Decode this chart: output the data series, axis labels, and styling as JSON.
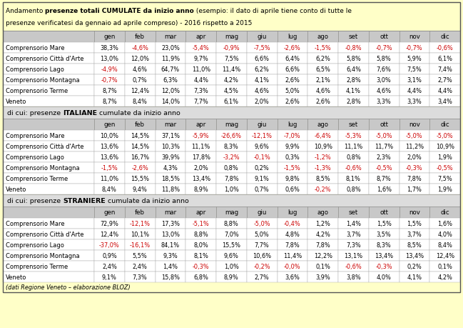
{
  "bg_color": "#FFFFC8",
  "header_bg": "#C8C8C8",
  "section_bg": "#DCDCDC",
  "months": [
    "gen",
    "feb",
    "mar",
    "apr",
    "mag",
    "giu",
    "lug",
    "ago",
    "set",
    "ott",
    "nov",
    "dic"
  ],
  "rows_totale": [
    [
      "Comprensorio Mare",
      "38,3%",
      "-4,6%",
      "23,0%",
      "-5,4%",
      "-0,9%",
      "-7,5%",
      "-2,6%",
      "-1,5%",
      "-0,8%",
      "-0,7%",
      "-0,7%",
      "-0,6%"
    ],
    [
      "Comprensorio Città d'Arte",
      "13,0%",
      "12,0%",
      "11,9%",
      "9,7%",
      "7,5%",
      "6,6%",
      "6,4%",
      "6,2%",
      "5,8%",
      "5,8%",
      "5,9%",
      "6,1%"
    ],
    [
      "Comprensorio Lago",
      "-4,9%",
      "4,6%",
      "64,7%",
      "11,0%",
      "11,4%",
      "6,2%",
      "6,6%",
      "6,5%",
      "6,4%",
      "7,6%",
      "7,5%",
      "7,4%"
    ],
    [
      "Comprensorio Montagna",
      "-0,7%",
      "0,7%",
      "6,3%",
      "4,4%",
      "4,2%",
      "4,1%",
      "2,6%",
      "2,1%",
      "2,8%",
      "3,0%",
      "3,1%",
      "2,7%"
    ],
    [
      "Comprensorio Terme",
      "8,7%",
      "12,4%",
      "12,0%",
      "7,3%",
      "4,5%",
      "4,6%",
      "5,0%",
      "4,6%",
      "4,1%",
      "4,6%",
      "4,4%",
      "4,4%"
    ],
    [
      "Veneto",
      "8,7%",
      "8,4%",
      "14,0%",
      "7,7%",
      "6,1%",
      "2,0%",
      "2,6%",
      "2,6%",
      "2,8%",
      "3,3%",
      "3,3%",
      "3,4%"
    ]
  ],
  "rows_italiane": [
    [
      "Comprensorio Mare",
      "10,0%",
      "14,5%",
      "37,1%",
      "-5,9%",
      "-26,6%",
      "-12,1%",
      "-7,0%",
      "-6,4%",
      "-5,3%",
      "-5,0%",
      "-5,0%",
      "-5,0%"
    ],
    [
      "Comprensorio Città d'Arte",
      "13,6%",
      "14,5%",
      "10,3%",
      "11,1%",
      "8,3%",
      "9,6%",
      "9,9%",
      "10,9%",
      "11,1%",
      "11,7%",
      "11,2%",
      "10,9%"
    ],
    [
      "Comprensorio Lago",
      "13,6%",
      "16,7%",
      "39,9%",
      "17,8%",
      "-3,2%",
      "-0,1%",
      "0,3%",
      "-1,2%",
      "0,8%",
      "2,3%",
      "2,0%",
      "1,9%"
    ],
    [
      "Comprensorio Montagna",
      "-1,5%",
      "-2,6%",
      "4,3%",
      "2,0%",
      "0,8%",
      "0,2%",
      "-1,5%",
      "-1,3%",
      "-0,6%",
      "-0,5%",
      "-0,3%",
      "-0,5%"
    ],
    [
      "Comprensorio Terme",
      "11,0%",
      "15,5%",
      "18,5%",
      "13,4%",
      "7,8%",
      "9,1%",
      "9,8%",
      "8,5%",
      "8,1%",
      "8,7%",
      "7,8%",
      "7,5%"
    ],
    [
      "Veneto",
      "8,4%",
      "9,4%",
      "11,8%",
      "8,9%",
      "1,0%",
      "0,7%",
      "0,6%",
      "-0,2%",
      "0,8%",
      "1,6%",
      "1,7%",
      "1,9%"
    ]
  ],
  "rows_straniere": [
    [
      "Comprensorio Mare",
      "72,9%",
      "-12,1%",
      "17,3%",
      "-5,1%",
      "8,8%",
      "-5,0%",
      "-0,4%",
      "1,2%",
      "1,4%",
      "1,5%",
      "1,5%",
      "1,6%"
    ],
    [
      "Comprensorio Città d'Arte",
      "12,4%",
      "10,1%",
      "13,0%",
      "8,8%",
      "7,0%",
      "5,0%",
      "4,8%",
      "4,2%",
      "3,7%",
      "3,5%",
      "3,7%",
      "4,0%"
    ],
    [
      "Comprensorio Lago",
      "-37,0%",
      "-16,1%",
      "84,1%",
      "8,0%",
      "15,5%",
      "7,7%",
      "7,8%",
      "7,8%",
      "7,3%",
      "8,3%",
      "8,5%",
      "8,4%"
    ],
    [
      "Comprensorio Montagna",
      "0,9%",
      "5,5%",
      "9,3%",
      "8,1%",
      "9,6%",
      "10,6%",
      "11,4%",
      "12,2%",
      "13,1%",
      "13,4%",
      "13,4%",
      "12,4%"
    ],
    [
      "Comprensorio Terme",
      "2,4%",
      "2,4%",
      "1,4%",
      "-0,3%",
      "1,0%",
      "-0,2%",
      "-0,0%",
      "0,1%",
      "-0,6%",
      "-0,3%",
      "0,2%",
      "0,1%"
    ],
    [
      "Veneto",
      "9,1%",
      "7,3%",
      "15,8%",
      "6,8%",
      "8,9%",
      "2,7%",
      "3,6%",
      "3,9%",
      "3,8%",
      "4,0%",
      "4,1%",
      "4,2%"
    ]
  ],
  "footer": "(dati Regione Veneto – elaborazione BLOZ)",
  "neg_color": "#CC0000",
  "pos_color": "#000000",
  "section2_bold": "ITALIANE",
  "section3_bold": "STRANIERE",
  "section2_label": "di cui: presenze ITALIANE cumulate da inizio anno",
  "section3_label": "di cui: presenze STRANIERE cumulate da inizio anno"
}
